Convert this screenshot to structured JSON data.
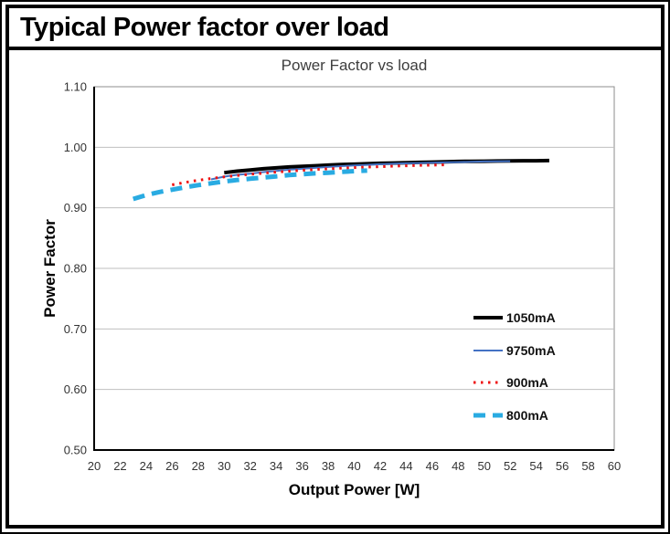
{
  "page": {
    "title": "Typical Power factor over load"
  },
  "chart_data": {
    "type": "line",
    "title": "Power Factor vs load",
    "xlabel": "Output Power [W]",
    "ylabel": "Power Factor",
    "xlim": [
      20,
      60
    ],
    "ylim": [
      0.5,
      1.1
    ],
    "x_ticks": [
      "20",
      "22",
      "24",
      "26",
      "28",
      "30",
      "32",
      "34",
      "36",
      "38",
      "40",
      "42",
      "44",
      "46",
      "48",
      "50",
      "52",
      "54",
      "56",
      "58",
      "60"
    ],
    "y_ticks": [
      "0.50",
      "0.60",
      "0.70",
      "0.80",
      "0.90",
      "1.00",
      "1.10"
    ],
    "grid": "horizontal-only",
    "legend_position": "inside-right",
    "colors": {
      "grid": "#bfbfbf",
      "plot_border": "#8c8c8c",
      "axis": "#000000"
    },
    "series": [
      {
        "name": "1050mA",
        "color": "#000000",
        "line_style": "solid",
        "line_width": 4,
        "points": [
          [
            30,
            0.958
          ],
          [
            31,
            0.9605
          ],
          [
            32,
            0.9625
          ],
          [
            33,
            0.9645
          ],
          [
            34,
            0.966
          ],
          [
            35,
            0.9675
          ],
          [
            36,
            0.9685
          ],
          [
            37,
            0.9695
          ],
          [
            38,
            0.9705
          ],
          [
            39,
            0.9715
          ],
          [
            40,
            0.972
          ],
          [
            41,
            0.9728
          ],
          [
            42,
            0.9735
          ],
          [
            43,
            0.974
          ],
          [
            44,
            0.9745
          ],
          [
            45,
            0.975
          ],
          [
            46,
            0.9755
          ],
          [
            47,
            0.976
          ],
          [
            48,
            0.9765
          ],
          [
            49,
            0.9768
          ],
          [
            50,
            0.977
          ],
          [
            51,
            0.9773
          ],
          [
            52,
            0.9775
          ],
          [
            53,
            0.9777
          ],
          [
            54,
            0.9778
          ],
          [
            55,
            0.978
          ]
        ]
      },
      {
        "name": "9750mA",
        "color": "#4472c4",
        "line_style": "solid",
        "line_width": 2,
        "points": [
          [
            29,
            0.947
          ],
          [
            30,
            0.9515
          ],
          [
            31,
            0.9545
          ],
          [
            32,
            0.9565
          ],
          [
            33,
            0.959
          ],
          [
            34,
            0.961
          ],
          [
            35,
            0.963
          ],
          [
            36,
            0.9645
          ],
          [
            37,
            0.966
          ],
          [
            38,
            0.9675
          ],
          [
            39,
            0.9688
          ],
          [
            40,
            0.97
          ],
          [
            41,
            0.971
          ],
          [
            42,
            0.972
          ],
          [
            43,
            0.9728
          ],
          [
            44,
            0.9735
          ],
          [
            45,
            0.974
          ],
          [
            46,
            0.9745
          ],
          [
            47,
            0.975
          ],
          [
            48,
            0.9755
          ],
          [
            49,
            0.976
          ],
          [
            50,
            0.9765
          ],
          [
            51,
            0.9768
          ],
          [
            52,
            0.977
          ]
        ]
      },
      {
        "name": "900mA",
        "color": "#ee1111",
        "line_style": "dotted",
        "line_width": 3,
        "points": [
          [
            26,
            0.938
          ],
          [
            27,
            0.942
          ],
          [
            28,
            0.9455
          ],
          [
            29,
            0.9485
          ],
          [
            30,
            0.951
          ],
          [
            31,
            0.9533
          ],
          [
            32,
            0.9555
          ],
          [
            33,
            0.9573
          ],
          [
            34,
            0.959
          ],
          [
            35,
            0.9605
          ],
          [
            36,
            0.962
          ],
          [
            37,
            0.9633
          ],
          [
            38,
            0.9645
          ],
          [
            39,
            0.9655
          ],
          [
            40,
            0.9665
          ],
          [
            41,
            0.9673
          ],
          [
            42,
            0.968
          ],
          [
            43,
            0.9688
          ],
          [
            44,
            0.9695
          ],
          [
            45,
            0.97
          ],
          [
            46,
            0.9705
          ],
          [
            47,
            0.971
          ]
        ]
      },
      {
        "name": "800mA",
        "color": "#29abe2",
        "line_style": "dashed",
        "line_width": 5,
        "points": [
          [
            23,
            0.9145
          ],
          [
            24,
            0.921
          ],
          [
            25,
            0.926
          ],
          [
            26,
            0.93
          ],
          [
            27,
            0.934
          ],
          [
            28,
            0.9375
          ],
          [
            29,
            0.9405
          ],
          [
            30,
            0.9435
          ],
          [
            31,
            0.946
          ],
          [
            32,
            0.948
          ],
          [
            33,
            0.95
          ],
          [
            34,
            0.952
          ],
          [
            35,
            0.954
          ],
          [
            36,
            0.9555
          ],
          [
            37,
            0.957
          ],
          [
            38,
            0.958
          ],
          [
            39,
            0.9593
          ],
          [
            40,
            0.9605
          ],
          [
            41,
            0.9615
          ]
        ]
      }
    ]
  }
}
